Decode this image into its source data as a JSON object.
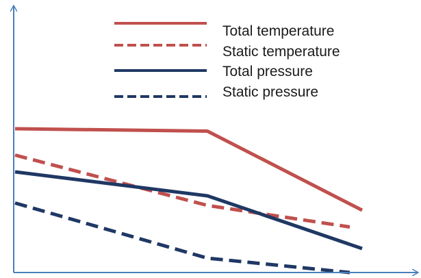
{
  "chart_data": {
    "type": "line",
    "title": "",
    "xlabel": "",
    "ylabel": "",
    "axes_ticks": "none",
    "grid": false,
    "legend_position": "top-right",
    "x_points": [
      "start",
      "middle",
      "end"
    ],
    "series": [
      {
        "name": "Total temperature",
        "color": "#c0504d",
        "line_style": "solid",
        "values": [
          0.6,
          0.59,
          0.26
        ]
      },
      {
        "name": "Static temperature",
        "color": "#c0504d",
        "line_style": "dashed",
        "values": [
          0.49,
          0.28,
          0.19
        ]
      },
      {
        "name": "Total pressure",
        "color": "#1f3864",
        "line_style": "solid",
        "values": [
          0.42,
          0.32,
          0.1
        ]
      },
      {
        "name": "Static pressure",
        "color": "#1f3864",
        "line_style": "dashed",
        "values": [
          0.29,
          0.06,
          0.0
        ]
      }
    ]
  },
  "colors": {
    "axis": "#4a7ebb",
    "legend_text": "#1a1a1a"
  }
}
